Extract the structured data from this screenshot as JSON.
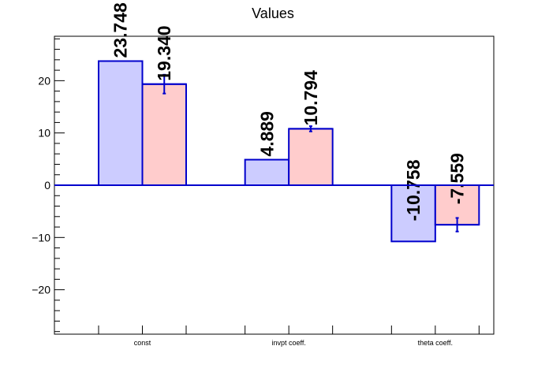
{
  "chart_data": {
    "type": "bar",
    "title": "Values",
    "xlabel": "",
    "ylabel": "",
    "categories": [
      "const",
      "invpt coeff.",
      "theta coeff."
    ],
    "series": [
      {
        "values": [
          23.748,
          4.889,
          -10.758
        ],
        "labels": [
          "23.748",
          "4.889",
          "-10.758"
        ],
        "fill": "#ccccff",
        "stroke": "#0000cc"
      },
      {
        "values": [
          19.34,
          10.794,
          -7.559
        ],
        "labels": [
          "19.340",
          "10.794",
          "-7.559"
        ],
        "errors": [
          1.8,
          0.5,
          1.3
        ],
        "fill": "#ffcccc",
        "stroke": "#0000cc"
      }
    ],
    "ylim": [
      -28.5,
      28.5
    ],
    "yticks": [
      -20,
      -10,
      0,
      10,
      20
    ],
    "ytick_labels": [
      "−20",
      "−10",
      "0",
      "10",
      "20"
    ],
    "grid": false,
    "colors": {
      "axis": "#000000",
      "baseline": "#0000cc",
      "bar_stroke": "#0000cc",
      "error_bar": "#0000cc"
    }
  }
}
